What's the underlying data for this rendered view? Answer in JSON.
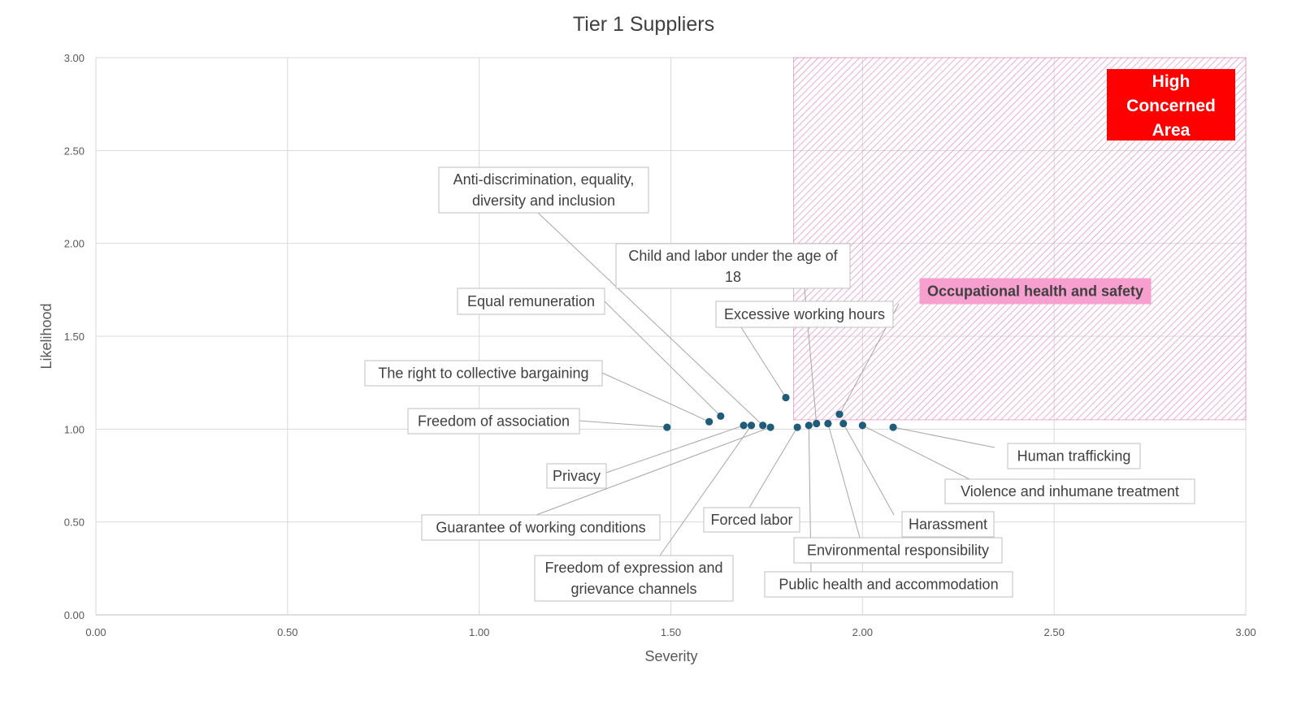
{
  "chart_data": {
    "type": "scatter",
    "title": "Tier 1 Suppliers",
    "xlabel": "Severity",
    "ylabel": "Likelihood",
    "xlim": [
      0,
      3
    ],
    "ylim": [
      0,
      3
    ],
    "x_ticks": [
      "0.00",
      "0.50",
      "1.00",
      "1.50",
      "2.00",
      "2.50",
      "3.00"
    ],
    "y_ticks": [
      "0.00",
      "0.50",
      "1.00",
      "1.50",
      "2.00",
      "2.50",
      "3.00"
    ],
    "grid": true,
    "marker_color": "#1f5c7a",
    "high_concern_area": {
      "label_lines": [
        "High",
        "Concerned",
        "Area"
      ],
      "x_from": 1.82,
      "x_to": 3.0,
      "y_from": 1.05,
      "y_to": 3.0,
      "hatch_color": "#e07bb8",
      "label_bg": "#ff0000"
    },
    "points": [
      {
        "name": "Freedom of association",
        "x": 1.49,
        "y": 1.01
      },
      {
        "name": "The right to collective bargaining",
        "x": 1.6,
        "y": 1.04
      },
      {
        "name": "Equal remuneration",
        "x": 1.63,
        "y": 1.07
      },
      {
        "name": "Privacy",
        "x": 1.69,
        "y": 1.02
      },
      {
        "name": "Freedom of expression and grievance channels",
        "x": 1.71,
        "y": 1.02
      },
      {
        "name": "Anti-discrimination, equality, diversity and inclusion",
        "x": 1.74,
        "y": 1.02
      },
      {
        "name": "Guarantee of working conditions",
        "x": 1.76,
        "y": 1.01
      },
      {
        "name": "Excessive working hours",
        "x": 1.8,
        "y": 1.17
      },
      {
        "name": "Forced labor",
        "x": 1.83,
        "y": 1.01
      },
      {
        "name": "Public health and accommodation",
        "x": 1.86,
        "y": 1.02
      },
      {
        "name": "Child and labor under the age of 18",
        "x": 1.88,
        "y": 1.03
      },
      {
        "name": "Environmental responsibility",
        "x": 1.91,
        "y": 1.03
      },
      {
        "name": "Occupational health and safety",
        "x": 1.94,
        "y": 1.08,
        "highlight": true
      },
      {
        "name": "Harassment",
        "x": 1.95,
        "y": 1.03
      },
      {
        "name": "Violence and inhumane treatment",
        "x": 2.0,
        "y": 1.02
      },
      {
        "name": "Human trafficking",
        "x": 2.08,
        "y": 1.01
      }
    ],
    "labels": [
      {
        "point": "Anti-discrimination, equality, diversity and inclusion",
        "lines": [
          "Anti-discrimination, equality,",
          "diversity and inclusion"
        ]
      },
      {
        "point": "Child and labor under the age of 18",
        "lines": [
          "Child and labor under the age of",
          "18"
        ]
      },
      {
        "point": "Equal remuneration",
        "lines": [
          "Equal remuneration"
        ]
      },
      {
        "point": "Excessive working hours",
        "lines": [
          "Excessive working hours"
        ]
      },
      {
        "point": "Occupational health and safety",
        "lines": [
          "Occupational health and safety"
        ],
        "highlight": true,
        "highlight_bg": "#f79fce"
      },
      {
        "point": "The right to collective bargaining",
        "lines": [
          "The right to collective bargaining"
        ]
      },
      {
        "point": "Freedom of association",
        "lines": [
          "Freedom of association"
        ]
      },
      {
        "point": "Privacy",
        "lines": [
          "Privacy"
        ]
      },
      {
        "point": "Guarantee of working conditions",
        "lines": [
          "Guarantee of working conditions"
        ]
      },
      {
        "point": "Freedom of expression and grievance channels",
        "lines": [
          "Freedom of expression and",
          "grievance channels"
        ]
      },
      {
        "point": "Forced labor",
        "lines": [
          "Forced labor"
        ]
      },
      {
        "point": "Human trafficking",
        "lines": [
          "Human trafficking"
        ]
      },
      {
        "point": "Violence and inhumane treatment",
        "lines": [
          "Violence and inhumane treatment"
        ]
      },
      {
        "point": "Harassment",
        "lines": [
          "Harassment"
        ]
      },
      {
        "point": "Environmental responsibility",
        "lines": [
          "Environmental responsibility"
        ]
      },
      {
        "point": "Public health and accommodation",
        "lines": [
          "Public health and accommodation"
        ]
      }
    ]
  }
}
